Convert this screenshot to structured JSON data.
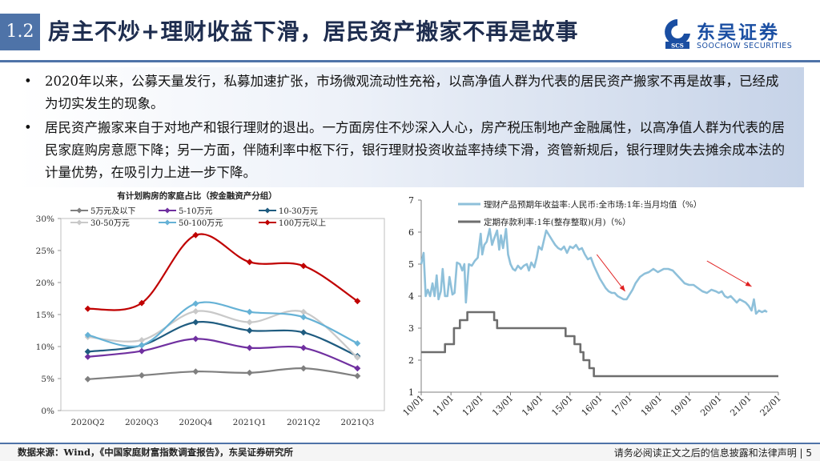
{
  "section_number": "1.2",
  "title": "房主不炒+理财收益下滑，居民资产搬家不再是故事",
  "logo": {
    "cn": "东吴证券",
    "en": "SOOCHOW SECURITIES"
  },
  "bullets": [
    "2020年以来，公募天量发行，私募加速扩张，市场微观流动性充裕，以高净值人群为代表的居民资产搬家不再是故事，已经成为切实发生的现象。",
    "居民资产搬家来自于对地产和银行理财的退出。一方面房住不炒深入人心，房产税压制地产金融属性，以高净值人群为代表的居民家庭购房意愿下降；另一方面，伴随利率中枢下行，银行理财投资收益率持续下滑，资管新规后，银行理财失去摊余成本法的计量优势，在吸引力上进一步下降。"
  ],
  "footer": {
    "source": "数据来源：Wind，《中国家庭财富指数调查报告》，东吴证券研究所",
    "disclaimer": "请务必阅读正文之后的信息披露和法律声明 | 5"
  },
  "chart_data": [
    {
      "type": "line",
      "title": "有计划购房的家庭占比（按金融资产分组）",
      "categories": [
        "2020Q2",
        "2020Q3",
        "2020Q4",
        "2021Q1",
        "2021Q2",
        "2021Q3"
      ],
      "ylim": [
        0,
        30
      ],
      "yticks": [
        "0%",
        "5%",
        "10%",
        "15%",
        "20%",
        "25%",
        "30%"
      ],
      "series": [
        {
          "name": "5万元及以下",
          "color": "#7f7f7f",
          "marker": "diamond",
          "values": [
            4.9,
            5.5,
            6.1,
            5.9,
            6.6,
            5.4
          ]
        },
        {
          "name": "5-10万元",
          "color": "#7030a0",
          "marker": "diamond",
          "values": [
            8.4,
            9.3,
            11.2,
            9.8,
            9.8,
            6.6
          ]
        },
        {
          "name": "10-30万元",
          "color": "#1f5c80",
          "marker": "diamond",
          "values": [
            9.2,
            10.2,
            13.8,
            12.5,
            12.2,
            8.5
          ]
        },
        {
          "name": "30-50万元",
          "color": "#c9c9c9",
          "marker": "diamond",
          "values": [
            11.5,
            11.0,
            15.5,
            13.8,
            15.4,
            8.3
          ]
        },
        {
          "name": "50-100万元",
          "color": "#66b2d6",
          "marker": "diamond",
          "values": [
            11.8,
            10.2,
            16.7,
            15.4,
            14.6,
            10.5
          ]
        },
        {
          "name": "100万元以上",
          "color": "#c00000",
          "marker": "diamond",
          "values": [
            15.9,
            16.8,
            27.4,
            23.2,
            22.6,
            17.1
          ]
        }
      ]
    },
    {
      "type": "line",
      "ylim": [
        1,
        7
      ],
      "yticks": [
        "1",
        "2",
        "3",
        "4",
        "5",
        "6",
        "7"
      ],
      "xrange": [
        2010,
        2022
      ],
      "xticks": [
        "10/01",
        "11/01",
        "12/01",
        "13/01",
        "14/01",
        "15/01",
        "16/01",
        "17/01",
        "18/01",
        "19/01",
        "20/01",
        "21/01",
        "22/01"
      ],
      "annotations": [
        {
          "type": "arrow",
          "color": "#e02020",
          "from": [
            2015.9,
            5.3
          ],
          "to": [
            2016.85,
            4.15
          ]
        },
        {
          "type": "arrow",
          "color": "#e02020",
          "from": [
            2019.6,
            5.1
          ],
          "to": [
            2021.1,
            4.3
          ]
        }
      ],
      "series": [
        {
          "name": "理财产品预期年收益率:人民币:全市场:1年:当月均值（%）",
          "color": "#8ec0da",
          "points": [
            [
              2010.0,
              5.0
            ],
            [
              2010.08,
              5.35
            ],
            [
              2010.15,
              4.0
            ],
            [
              2010.22,
              4.2
            ],
            [
              2010.3,
              4.0
            ],
            [
              2010.38,
              4.4
            ],
            [
              2010.45,
              4.0
            ],
            [
              2010.52,
              4.65
            ],
            [
              2010.58,
              3.9
            ],
            [
              2010.66,
              4.15
            ],
            [
              2010.72,
              4.85
            ],
            [
              2010.8,
              4.0
            ],
            [
              2010.88,
              4.0
            ],
            [
              2010.95,
              4.6
            ],
            [
              2011.05,
              4.05
            ],
            [
              2011.12,
              4.1
            ],
            [
              2011.2,
              5.05
            ],
            [
              2011.3,
              5.0
            ],
            [
              2011.38,
              4.8
            ],
            [
              2011.45,
              5.0
            ],
            [
              2011.5,
              3.8
            ],
            [
              2011.6,
              5.0
            ],
            [
              2011.7,
              4.95
            ],
            [
              2011.8,
              5.1
            ],
            [
              2011.9,
              5.2
            ],
            [
              2012.0,
              5.95
            ],
            [
              2012.05,
              5.3
            ],
            [
              2012.12,
              5.6
            ],
            [
              2012.2,
              5.7
            ],
            [
              2012.3,
              6.1
            ],
            [
              2012.38,
              5.6
            ],
            [
              2012.45,
              5.8
            ],
            [
              2012.55,
              6.05
            ],
            [
              2012.62,
              5.45
            ],
            [
              2012.68,
              5.9
            ],
            [
              2012.75,
              5.5
            ],
            [
              2012.85,
              6.1
            ],
            [
              2012.92,
              5.3
            ],
            [
              2013.0,
              5.0
            ],
            [
              2013.08,
              4.85
            ],
            [
              2013.16,
              4.8
            ],
            [
              2013.25,
              4.95
            ],
            [
              2013.35,
              4.85
            ],
            [
              2013.45,
              4.95
            ],
            [
              2013.55,
              5.0
            ],
            [
              2013.62,
              4.8
            ],
            [
              2013.7,
              5.05
            ],
            [
              2013.8,
              4.9
            ],
            [
              2013.88,
              5.2
            ],
            [
              2013.95,
              5.55
            ],
            [
              2014.05,
              5.45
            ],
            [
              2014.15,
              5.85
            ],
            [
              2014.2,
              6.05
            ],
            [
              2014.3,
              5.9
            ],
            [
              2014.4,
              5.75
            ],
            [
              2014.5,
              5.6
            ],
            [
              2014.6,
              5.5
            ],
            [
              2014.7,
              5.45
            ],
            [
              2014.8,
              5.55
            ],
            [
              2014.9,
              5.35
            ],
            [
              2015.0,
              5.55
            ],
            [
              2015.1,
              5.5
            ],
            [
              2015.2,
              5.6
            ],
            [
              2015.3,
              5.45
            ],
            [
              2015.4,
              5.5
            ],
            [
              2015.5,
              5.3
            ],
            [
              2015.6,
              5.15
            ],
            [
              2015.7,
              5.2
            ],
            [
              2015.8,
              4.95
            ],
            [
              2015.9,
              4.75
            ],
            [
              2016.0,
              4.55
            ],
            [
              2016.1,
              4.4
            ],
            [
              2016.2,
              4.25
            ],
            [
              2016.3,
              4.15
            ],
            [
              2016.4,
              4.1
            ],
            [
              2016.5,
              4.1
            ],
            [
              2016.6,
              4.0
            ],
            [
              2016.7,
              3.95
            ],
            [
              2016.8,
              3.9
            ],
            [
              2016.9,
              3.9
            ],
            [
              2017.0,
              4.05
            ],
            [
              2017.1,
              4.2
            ],
            [
              2017.2,
              4.4
            ],
            [
              2017.35,
              4.6
            ],
            [
              2017.5,
              4.7
            ],
            [
              2017.65,
              4.75
            ],
            [
              2017.8,
              4.85
            ],
            [
              2017.95,
              4.75
            ],
            [
              2018.05,
              4.8
            ],
            [
              2018.15,
              4.85
            ],
            [
              2018.3,
              4.85
            ],
            [
              2018.45,
              4.8
            ],
            [
              2018.55,
              4.7
            ],
            [
              2018.7,
              4.55
            ],
            [
              2018.85,
              4.4
            ],
            [
              2019.0,
              4.35
            ],
            [
              2019.15,
              4.35
            ],
            [
              2019.3,
              4.25
            ],
            [
              2019.45,
              4.15
            ],
            [
              2019.6,
              4.1
            ],
            [
              2019.75,
              4.2
            ],
            [
              2019.9,
              4.15
            ],
            [
              2020.0,
              4.1
            ],
            [
              2020.1,
              4.15
            ],
            [
              2020.2,
              4.0
            ],
            [
              2020.3,
              3.95
            ],
            [
              2020.4,
              4.0
            ],
            [
              2020.5,
              3.9
            ],
            [
              2020.6,
              3.8
            ],
            [
              2020.7,
              3.9
            ],
            [
              2020.8,
              3.85
            ],
            [
              2020.9,
              3.8
            ],
            [
              2021.0,
              3.7
            ],
            [
              2021.1,
              3.55
            ],
            [
              2021.18,
              3.9
            ],
            [
              2021.25,
              3.45
            ],
            [
              2021.35,
              3.55
            ],
            [
              2021.45,
              3.5
            ],
            [
              2021.55,
              3.55
            ],
            [
              2021.62,
              3.5
            ]
          ]
        },
        {
          "name": "定期存款利率:1年(整存整取)(月)（%）",
          "color": "#6e6e6e",
          "points": [
            [
              2010.0,
              2.25
            ],
            [
              2010.8,
              2.25
            ],
            [
              2010.8,
              2.5
            ],
            [
              2011.1,
              2.5
            ],
            [
              2011.1,
              3.0
            ],
            [
              2011.3,
              3.0
            ],
            [
              2011.3,
              3.25
            ],
            [
              2011.55,
              3.25
            ],
            [
              2011.55,
              3.5
            ],
            [
              2012.45,
              3.5
            ],
            [
              2012.45,
              3.25
            ],
            [
              2012.55,
              3.25
            ],
            [
              2012.55,
              3.0
            ],
            [
              2014.85,
              3.0
            ],
            [
              2014.85,
              2.75
            ],
            [
              2015.15,
              2.75
            ],
            [
              2015.15,
              2.5
            ],
            [
              2015.35,
              2.5
            ],
            [
              2015.35,
              2.25
            ],
            [
              2015.45,
              2.25
            ],
            [
              2015.45,
              2.0
            ],
            [
              2015.65,
              2.0
            ],
            [
              2015.65,
              1.75
            ],
            [
              2015.8,
              1.75
            ],
            [
              2015.8,
              1.5
            ],
            [
              2022.0,
              1.5
            ]
          ]
        }
      ]
    }
  ]
}
